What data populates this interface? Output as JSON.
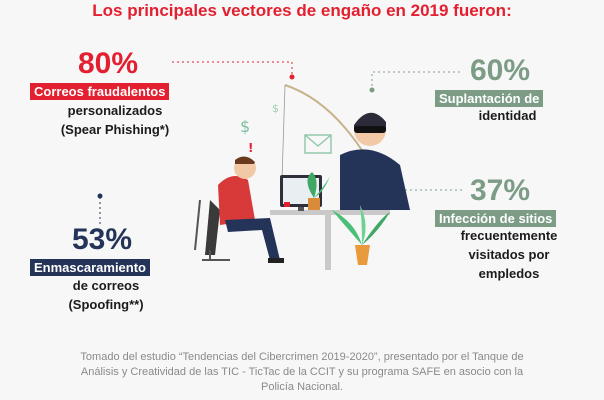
{
  "title": "Los principales vectores de engaño en 2019 fueron:",
  "stats": [
    {
      "percent": "80%",
      "tag": "Correos fraudalentos",
      "desc_lines": [
        "personalizados",
        "(Spear Phishing*)"
      ],
      "color": "#e3202f"
    },
    {
      "percent": "60%",
      "tag": "Suplantación de",
      "desc_lines": [
        "identidad"
      ],
      "color": "#7c9c86"
    },
    {
      "percent": "53%",
      "tag": "Enmascaramiento",
      "desc_lines": [
        "de correos",
        "(Spoofing**)"
      ],
      "color": "#243459"
    },
    {
      "percent": "37%",
      "tag": "Infección de sitios",
      "desc_lines": [
        "frecuentemente",
        "visitados por",
        "empledos"
      ],
      "color": "#7c9c86"
    }
  ],
  "illustration": {
    "icons": [
      "hacker-figure",
      "fishing-rod-icon",
      "dollar-icon",
      "email-icon",
      "worried-person-figure",
      "computer-icon",
      "plant-icon"
    ]
  },
  "footer_lines": [
    "Tomado del estudio “Tendencias del Cibercrimen 2019-2020”, presentado por el Tanque de",
    "Análisis y Creatividad de las TIC - TicTac de la CCIT y su programa SAFE en asocio con la",
    "Policía Nacional."
  ]
}
